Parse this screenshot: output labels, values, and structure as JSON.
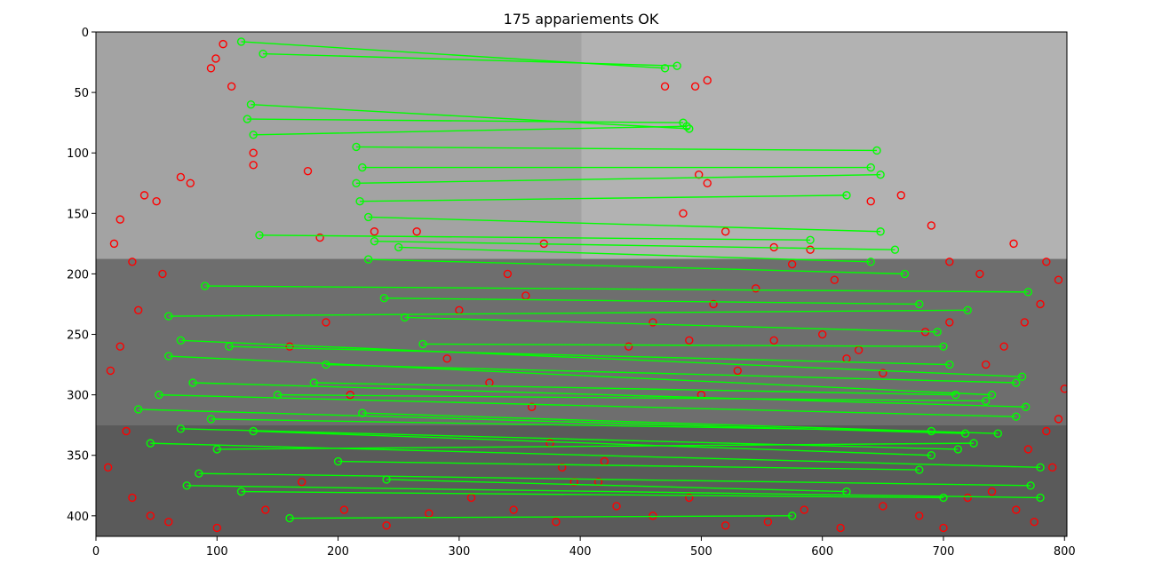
{
  "chart_data": {
    "type": "image-matches",
    "title": "175 appariements OK",
    "match_count": 175,
    "xlabel": "",
    "ylabel": "",
    "xlim": [
      0,
      802
    ],
    "ylim": [
      417,
      0
    ],
    "y_inverted": true,
    "xticks": [
      0,
      100,
      200,
      300,
      400,
      500,
      600,
      700,
      800
    ],
    "yticks": [
      0,
      50,
      100,
      150,
      200,
      250,
      300,
      350,
      400
    ],
    "image_split_x": 401,
    "grid": false,
    "legend": "none",
    "colors": {
      "match_line": "#00ff00",
      "matched_keypoint": "#00ff00",
      "unmatched_keypoint": "#ff0000",
      "frame": "#000000"
    },
    "matches_sample": [
      [
        [
          138,
          18
        ],
        [
          480,
          28
        ]
      ],
      [
        [
          120,
          8
        ],
        [
          470,
          30
        ]
      ],
      [
        [
          128,
          60
        ],
        [
          490,
          80
        ]
      ],
      [
        [
          125,
          72
        ],
        [
          485,
          75
        ]
      ],
      [
        [
          130,
          85
        ],
        [
          488,
          78
        ]
      ],
      [
        [
          215,
          95
        ],
        [
          645,
          98
        ]
      ],
      [
        [
          220,
          112
        ],
        [
          640,
          112
        ]
      ],
      [
        [
          215,
          125
        ],
        [
          648,
          118
        ]
      ],
      [
        [
          218,
          140
        ],
        [
          620,
          135
        ]
      ],
      [
        [
          225,
          153
        ],
        [
          648,
          165
        ]
      ],
      [
        [
          230,
          173
        ],
        [
          660,
          180
        ]
      ],
      [
        [
          225,
          188
        ],
        [
          668,
          200
        ]
      ],
      [
        [
          238,
          220
        ],
        [
          680,
          225
        ]
      ],
      [
        [
          255,
          236
        ],
        [
          695,
          248
        ]
      ],
      [
        [
          270,
          258
        ],
        [
          700,
          260
        ]
      ],
      [
        [
          70,
          255
        ],
        [
          765,
          285
        ]
      ],
      [
        [
          60,
          268
        ],
        [
          740,
          300
        ]
      ],
      [
        [
          80,
          290
        ],
        [
          768,
          310
        ]
      ],
      [
        [
          35,
          312
        ],
        [
          718,
          332
        ]
      ],
      [
        [
          70,
          328
        ],
        [
          712,
          345
        ]
      ],
      [
        [
          45,
          340
        ],
        [
          780,
          360
        ]
      ],
      [
        [
          85,
          365
        ],
        [
          772,
          375
        ]
      ],
      [
        [
          120,
          380
        ],
        [
          700,
          385
        ]
      ],
      [
        [
          160,
          402
        ],
        [
          575,
          400
        ]
      ],
      [
        [
          52,
          300
        ],
        [
          760,
          318
        ]
      ],
      [
        [
          130,
          330
        ],
        [
          690,
          350
        ]
      ],
      [
        [
          220,
          315
        ],
        [
          745,
          332
        ]
      ],
      [
        [
          90,
          210
        ],
        [
          770,
          215
        ]
      ],
      [
        [
          135,
          168
        ],
        [
          590,
          172
        ]
      ],
      [
        [
          250,
          178
        ],
        [
          640,
          190
        ]
      ],
      [
        [
          60,
          235
        ],
        [
          720,
          230
        ]
      ],
      [
        [
          110,
          260
        ],
        [
          705,
          275
        ]
      ],
      [
        [
          180,
          290
        ],
        [
          710,
          300
        ]
      ],
      [
        [
          200,
          355
        ],
        [
          680,
          362
        ]
      ],
      [
        [
          240,
          370
        ],
        [
          620,
          380
        ]
      ],
      [
        [
          100,
          345
        ],
        [
          725,
          340
        ]
      ],
      [
        [
          150,
          300
        ],
        [
          735,
          305
        ]
      ],
      [
        [
          75,
          375
        ],
        [
          780,
          385
        ]
      ],
      [
        [
          190,
          275
        ],
        [
          760,
          290
        ]
      ],
      [
        [
          95,
          320
        ],
        [
          690,
          330
        ]
      ]
    ],
    "unmatched_sample": [
      [
        105,
        10
      ],
      [
        99,
        22
      ],
      [
        112,
        45
      ],
      [
        95,
        30
      ],
      [
        130,
        100
      ],
      [
        130,
        110
      ],
      [
        70,
        120
      ],
      [
        78,
        125
      ],
      [
        50,
        140
      ],
      [
        40,
        135
      ],
      [
        20,
        155
      ],
      [
        15,
        175
      ],
      [
        30,
        190
      ],
      [
        55,
        200
      ],
      [
        35,
        230
      ],
      [
        20,
        260
      ],
      [
        12,
        280
      ],
      [
        25,
        330
      ],
      [
        10,
        360
      ],
      [
        30,
        385
      ],
      [
        45,
        400
      ],
      [
        60,
        405
      ],
      [
        100,
        410
      ],
      [
        140,
        395
      ],
      [
        170,
        372
      ],
      [
        205,
        395
      ],
      [
        240,
        408
      ],
      [
        275,
        398
      ],
      [
        310,
        385
      ],
      [
        345,
        395
      ],
      [
        380,
        405
      ],
      [
        395,
        372
      ],
      [
        290,
        270
      ],
      [
        325,
        290
      ],
      [
        360,
        310
      ],
      [
        375,
        340
      ],
      [
        385,
        360
      ],
      [
        300,
        230
      ],
      [
        340,
        200
      ],
      [
        370,
        175
      ],
      [
        175,
        115
      ],
      [
        190,
        240
      ],
      [
        210,
        300
      ],
      [
        160,
        260
      ],
      [
        185,
        170
      ],
      [
        230,
        165
      ],
      [
        265,
        165
      ],
      [
        355,
        218
      ],
      [
        470,
        45
      ],
      [
        495,
        45
      ],
      [
        505,
        40
      ],
      [
        498,
        118
      ],
      [
        505,
        125
      ],
      [
        485,
        150
      ],
      [
        520,
        165
      ],
      [
        560,
        178
      ],
      [
        590,
        180
      ],
      [
        610,
        205
      ],
      [
        640,
        140
      ],
      [
        665,
        135
      ],
      [
        690,
        160
      ],
      [
        705,
        190
      ],
      [
        730,
        200
      ],
      [
        758,
        175
      ],
      [
        785,
        190
      ],
      [
        795,
        205
      ],
      [
        800,
        295
      ],
      [
        795,
        320
      ],
      [
        785,
        330
      ],
      [
        770,
        345
      ],
      [
        790,
        360
      ],
      [
        775,
        405
      ],
      [
        760,
        395
      ],
      [
        740,
        380
      ],
      [
        720,
        385
      ],
      [
        700,
        410
      ],
      [
        680,
        400
      ],
      [
        650,
        392
      ],
      [
        615,
        410
      ],
      [
        585,
        395
      ],
      [
        555,
        405
      ],
      [
        520,
        408
      ],
      [
        490,
        385
      ],
      [
        460,
        400
      ],
      [
        430,
        392
      ],
      [
        415,
        372
      ],
      [
        420,
        355
      ],
      [
        440,
        260
      ],
      [
        460,
        240
      ],
      [
        490,
        255
      ],
      [
        510,
        225
      ],
      [
        545,
        212
      ],
      [
        575,
        192
      ],
      [
        600,
        250
      ],
      [
        620,
        270
      ],
      [
        650,
        282
      ],
      [
        685,
        248
      ],
      [
        705,
        240
      ],
      [
        735,
        275
      ],
      [
        750,
        260
      ],
      [
        767,
        240
      ],
      [
        780,
        225
      ],
      [
        630,
        263
      ],
      [
        560,
        255
      ],
      [
        530,
        280
      ],
      [
        500,
        300
      ]
    ]
  }
}
